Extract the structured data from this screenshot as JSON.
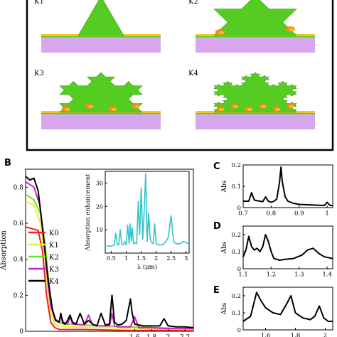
{
  "figure_panel_a": {
    "frame_color": "#000000",
    "models": [
      {
        "label": "K1"
      },
      {
        "label": "K2"
      },
      {
        "label": "K3"
      },
      {
        "label": "K4"
      }
    ],
    "colors": {
      "fractal": "#55cc22",
      "metal_layer": "#f5c51c",
      "substrate": "#d8a6ef",
      "hot_spot": "#f28a1e"
    }
  },
  "chart_data": [
    {
      "panel": "B",
      "type": "line",
      "ylabel": "Absorption",
      "xlabel": "",
      "ylim": [
        0,
        0.9
      ],
      "y_ticks": [
        "0",
        "0.2",
        "0.4",
        "0.6",
        "0.8"
      ],
      "x_ticks": [
        "1.6",
        "1.8",
        "2",
        "2.2"
      ],
      "xlim": [
        0.3,
        2.3
      ],
      "series": [
        {
          "name": "K0",
          "color": "#ee2222",
          "x": [
            0.3,
            0.45,
            0.5,
            0.55,
            0.6,
            0.65,
            0.7,
            1.0,
            1.5,
            2.0,
            2.3
          ],
          "y": [
            0.58,
            0.56,
            0.45,
            0.2,
            0.05,
            0.02,
            0.01,
            0.01,
            0.005,
            0.005,
            0.005
          ]
        },
        {
          "name": "K1",
          "color": "#eeee33",
          "x": [
            0.3,
            0.4,
            0.48,
            0.52,
            0.56,
            0.6,
            0.65,
            0.7,
            0.8,
            1.2,
            1.8,
            2.3
          ],
          "y": [
            0.72,
            0.7,
            0.6,
            0.45,
            0.25,
            0.1,
            0.04,
            0.03,
            0.025,
            0.02,
            0.015,
            0.01
          ]
        },
        {
          "name": "K2",
          "color": "#77dd33",
          "x": [
            0.3,
            0.4,
            0.48,
            0.53,
            0.57,
            0.6,
            0.65,
            0.7,
            0.75,
            0.8,
            1.2,
            1.8,
            2.3
          ],
          "y": [
            0.76,
            0.73,
            0.65,
            0.5,
            0.3,
            0.15,
            0.06,
            0.05,
            0.04,
            0.04,
            0.03,
            0.02,
            0.015
          ]
        },
        {
          "name": "K3",
          "color": "#cc22cc",
          "x": [
            0.3,
            0.4,
            0.47,
            0.52,
            0.56,
            0.6,
            0.65,
            0.7,
            0.72,
            0.75,
            0.8,
            0.83,
            0.86,
            0.9,
            1.0,
            1.05,
            1.1,
            1.2,
            1.3,
            1.33,
            1.36,
            1.4,
            1.55,
            1.6,
            1.65,
            1.8,
            2.0,
            2.3
          ],
          "y": [
            0.83,
            0.8,
            0.7,
            0.5,
            0.3,
            0.14,
            0.07,
            0.05,
            0.09,
            0.05,
            0.04,
            0.08,
            0.04,
            0.04,
            0.035,
            0.09,
            0.035,
            0.03,
            0.03,
            0.1,
            0.03,
            0.025,
            0.025,
            0.08,
            0.02,
            0.02,
            0.015,
            0.015
          ]
        },
        {
          "name": "K4",
          "color": "#000000",
          "x": [
            0.3,
            0.35,
            0.4,
            0.45,
            0.5,
            0.55,
            0.58,
            0.62,
            0.66,
            0.7,
            0.72,
            0.74,
            0.77,
            0.8,
            0.83,
            0.86,
            0.9,
            0.95,
            1.0,
            1.05,
            1.1,
            1.15,
            1.2,
            1.25,
            1.3,
            1.33,
            1.36,
            1.4,
            1.45,
            1.5,
            1.55,
            1.57,
            1.6,
            1.65,
            1.7,
            1.8,
            1.9,
            1.95,
            2.0,
            2.1,
            2.2,
            2.3
          ],
          "y": [
            0.86,
            0.84,
            0.85,
            0.78,
            0.58,
            0.36,
            0.25,
            0.12,
            0.06,
            0.05,
            0.1,
            0.05,
            0.04,
            0.06,
            0.09,
            0.05,
            0.04,
            0.1,
            0.04,
            0.06,
            0.04,
            0.03,
            0.1,
            0.035,
            0.04,
            0.2,
            0.05,
            0.035,
            0.04,
            0.06,
            0.18,
            0.1,
            0.04,
            0.035,
            0.03,
            0.03,
            0.03,
            0.07,
            0.03,
            0.025,
            0.025,
            0.02
          ]
        }
      ],
      "legend_position": "lower-left"
    },
    {
      "panel": "B-inset",
      "type": "line",
      "xlabel": "λ (μm)",
      "ylabel": "Absorption enhancement",
      "xlim": [
        0.3,
        3.1
      ],
      "ylim": [
        0,
        35
      ],
      "x_ticks": [
        "0.5",
        "1",
        "1.5",
        "2",
        "2.5",
        "3"
      ],
      "y_ticks": [
        "10",
        "20",
        "30"
      ],
      "series": [
        {
          "color": "#33c4cc",
          "x": [
            0.35,
            0.5,
            0.6,
            0.65,
            0.7,
            0.75,
            0.8,
            0.85,
            0.9,
            0.95,
            1.0,
            1.05,
            1.1,
            1.13,
            1.17,
            1.2,
            1.25,
            1.3,
            1.35,
            1.4,
            1.45,
            1.5,
            1.55,
            1.6,
            1.65,
            1.7,
            1.75,
            1.8,
            1.85,
            1.9,
            1.95,
            2.0,
            2.1,
            2.2,
            2.3,
            2.4,
            2.5,
            2.55,
            2.6,
            2.7,
            2.8,
            2.9,
            3.0,
            3.1
          ],
          "y": [
            3,
            3,
            3.5,
            8.5,
            4,
            3.5,
            10,
            4,
            3.5,
            5,
            3.5,
            12,
            4,
            12.5,
            5,
            11,
            4,
            4.5,
            4,
            22,
            8,
            28,
            6,
            18,
            34,
            5,
            17,
            6,
            4.5,
            4,
            12.5,
            4,
            3.5,
            3.5,
            4.5,
            6.5,
            16,
            9,
            4.5,
            4,
            4,
            5,
            4.5,
            4
          ]
        }
      ]
    },
    {
      "panel": "C",
      "type": "line",
      "ylabel": "Abs",
      "xlim": [
        0.7,
        1.02
      ],
      "ylim": [
        0,
        0.2
      ],
      "x_ticks": [
        "0.7",
        "0.8",
        "0.9",
        "1"
      ],
      "y_ticks": [
        "0",
        "0.1",
        "0.2"
      ],
      "series": [
        {
          "color": "#000000",
          "x": [
            0.7,
            0.72,
            0.73,
            0.74,
            0.76,
            0.77,
            0.78,
            0.79,
            0.8,
            0.81,
            0.82,
            0.83,
            0.835,
            0.84,
            0.85,
            0.86,
            0.88,
            0.9,
            0.95,
            0.99,
            1.0,
            1.01,
            1.02
          ],
          "y": [
            0.03,
            0.03,
            0.07,
            0.035,
            0.03,
            0.028,
            0.05,
            0.03,
            0.025,
            0.03,
            0.04,
            0.12,
            0.19,
            0.12,
            0.05,
            0.03,
            0.02,
            0.015,
            0.012,
            0.01,
            0.025,
            0.01,
            0.01
          ]
        }
      ]
    },
    {
      "panel": "D",
      "type": "line",
      "ylabel": "Abs",
      "xlim": [
        1.1,
        1.42
      ],
      "ylim": [
        0,
        0.25
      ],
      "x_ticks": [
        "1.1",
        "1.2",
        "1.3",
        "1.4"
      ],
      "y_ticks": [
        "0",
        "0.1",
        "0.2"
      ],
      "series": [
        {
          "color": "#000000",
          "x": [
            1.1,
            1.11,
            1.12,
            1.13,
            1.14,
            1.15,
            1.16,
            1.17,
            1.18,
            1.19,
            1.2,
            1.21,
            1.23,
            1.25,
            1.28,
            1.31,
            1.33,
            1.35,
            1.37,
            1.39,
            1.42
          ],
          "y": [
            0.07,
            0.11,
            0.19,
            0.13,
            0.11,
            0.12,
            0.1,
            0.13,
            0.2,
            0.16,
            0.1,
            0.06,
            0.05,
            0.055,
            0.06,
            0.08,
            0.11,
            0.12,
            0.09,
            0.07,
            0.06
          ]
        }
      ]
    },
    {
      "panel": "E",
      "type": "line",
      "ylabel": "Abs",
      "xlim": [
        1.45,
        2.05
      ],
      "ylim": [
        0,
        0.25
      ],
      "x_ticks": [
        "1.6",
        "1.8",
        "2"
      ],
      "y_ticks": [
        "0",
        "0.1",
        "0.2"
      ],
      "series": [
        {
          "color": "#000000",
          "x": [
            1.45,
            1.5,
            1.54,
            1.57,
            1.6,
            1.65,
            1.7,
            1.74,
            1.77,
            1.8,
            1.85,
            1.9,
            1.93,
            1.96,
            1.99,
            2.02,
            2.05
          ],
          "y": [
            0.05,
            0.08,
            0.22,
            0.17,
            0.13,
            0.1,
            0.09,
            0.15,
            0.2,
            0.1,
            0.07,
            0.06,
            0.08,
            0.14,
            0.07,
            0.05,
            0.05
          ]
        }
      ]
    }
  ],
  "panel_letters": {
    "b": "B",
    "c": "C",
    "d": "D",
    "e": "E"
  }
}
